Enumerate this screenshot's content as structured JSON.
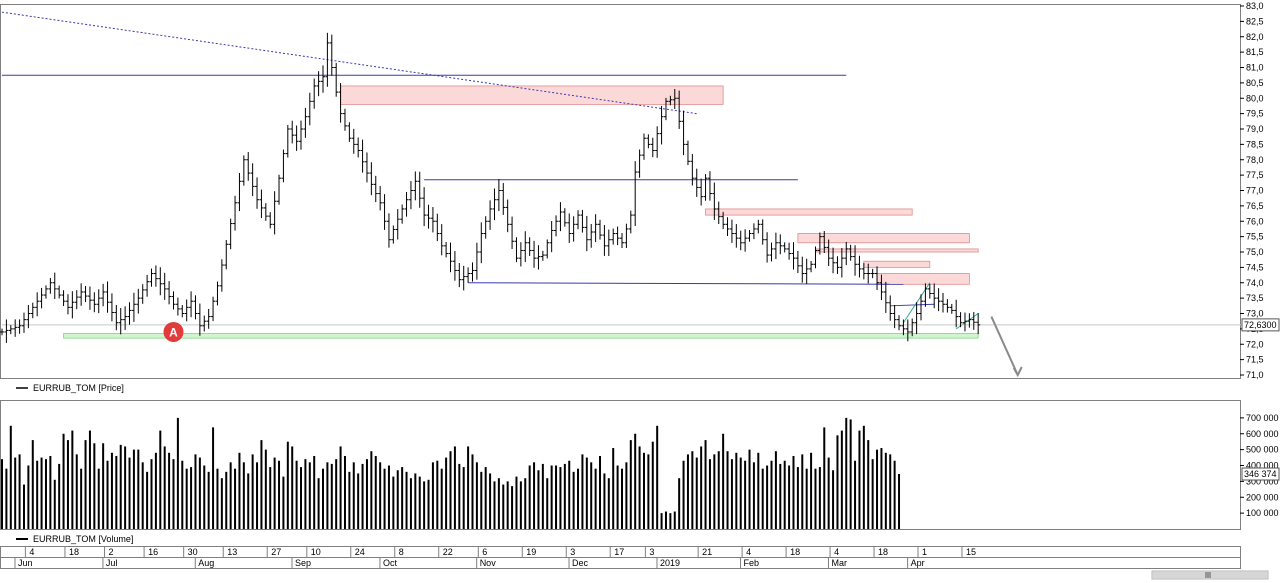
{
  "chart_data": [
    {
      "type": "ohlc",
      "series_name": "EURRUB_TOM [Price]",
      "ylim": [
        71.0,
        83.0
      ],
      "y_ticks": [
        "83,0",
        "82,5",
        "82,0",
        "81,5",
        "81,0",
        "80,5",
        "80,0",
        "79,5",
        "79,0",
        "78,5",
        "78,0",
        "77,5",
        "77,0",
        "76,5",
        "76,0",
        "75,5",
        "75,0",
        "74,5",
        "74,0",
        "73,5",
        "73,0",
        "72,5",
        "72,0",
        "71,5",
        "71,0"
      ],
      "y_tick_values": [
        83.0,
        82.5,
        82.0,
        81.5,
        81.0,
        80.5,
        80.0,
        79.5,
        79.0,
        78.5,
        78.0,
        77.5,
        77.0,
        76.5,
        76.0,
        75.5,
        75.0,
        74.5,
        74.0,
        73.5,
        73.0,
        72.5,
        72.0,
        71.5,
        71.0
      ],
      "last_value": 72.63,
      "last_value_label": "72,6300",
      "close_path": [
        [
          0,
          72.4
        ],
        [
          4,
          72.6
        ],
        [
          8,
          73.4
        ],
        [
          11,
          74.0
        ],
        [
          13,
          73.6
        ],
        [
          15,
          73.2
        ],
        [
          18,
          73.7
        ],
        [
          21,
          73.3
        ],
        [
          23,
          73.7
        ],
        [
          26,
          72.7
        ],
        [
          28,
          72.9
        ],
        [
          31,
          73.5
        ],
        [
          34,
          74.3
        ],
        [
          37,
          73.8
        ],
        [
          39,
          73.3
        ],
        [
          41,
          73.0
        ],
        [
          43,
          73.4
        ],
        [
          45,
          72.6
        ],
        [
          47,
          72.9
        ],
        [
          49,
          73.9
        ],
        [
          53,
          76.6
        ],
        [
          55,
          78.0
        ],
        [
          58,
          76.7
        ],
        [
          61,
          75.9
        ],
        [
          63,
          77.4
        ],
        [
          65,
          79.0
        ],
        [
          67,
          78.6
        ],
        [
          69,
          79.4
        ],
        [
          71,
          80.4
        ],
        [
          73,
          80.7
        ],
        [
          74,
          81.8
        ],
        [
          76,
          80.2
        ],
        [
          77,
          79.5
        ],
        [
          79,
          78.7
        ],
        [
          81,
          78.3
        ],
        [
          84,
          77.2
        ],
        [
          86,
          76.6
        ],
        [
          88,
          75.4
        ],
        [
          91,
          76.4
        ],
        [
          94,
          77.3
        ],
        [
          96,
          76.2
        ],
        [
          98,
          76.0
        ],
        [
          100,
          75.2
        ],
        [
          102,
          74.7
        ],
        [
          104,
          74.1
        ],
        [
          107,
          74.4
        ],
        [
          109,
          75.6
        ],
        [
          111,
          76.4
        ],
        [
          113,
          77.0
        ],
        [
          115,
          75.9
        ],
        [
          117,
          74.8
        ],
        [
          119,
          75.3
        ],
        [
          121,
          74.8
        ],
        [
          123,
          74.9
        ],
        [
          125,
          75.7
        ],
        [
          127,
          76.3
        ],
        [
          129,
          75.6
        ],
        [
          131,
          76.2
        ],
        [
          133,
          75.4
        ],
        [
          135,
          75.9
        ],
        [
          137,
          75.2
        ],
        [
          139,
          75.6
        ],
        [
          141,
          75.3
        ],
        [
          143,
          76.2
        ],
        [
          144,
          77.6
        ],
        [
          146,
          78.7
        ],
        [
          148,
          78.3
        ],
        [
          150,
          79.4
        ],
        [
          151,
          79.9
        ],
        [
          153,
          80.0
        ],
        [
          155,
          78.5
        ],
        [
          157,
          77.4
        ],
        [
          159,
          76.8
        ],
        [
          160,
          77.4
        ],
        [
          162,
          76.4
        ],
        [
          164,
          75.9
        ],
        [
          166,
          75.6
        ],
        [
          168,
          75.3
        ],
        [
          170,
          75.6
        ],
        [
          172,
          75.9
        ],
        [
          174,
          74.9
        ],
        [
          176,
          75.3
        ],
        [
          178,
          75.1
        ],
        [
          180,
          74.8
        ],
        [
          182,
          74.3
        ],
        [
          184,
          74.6
        ],
        [
          186,
          75.5
        ],
        [
          188,
          74.8
        ],
        [
          190,
          74.5
        ],
        [
          192,
          75.1
        ],
        [
          194,
          74.6
        ],
        [
          196,
          74.3
        ],
        [
          198,
          74.3
        ],
        [
          200,
          73.7
        ],
        [
          202,
          73.0
        ],
        [
          204,
          72.6
        ],
        [
          206,
          72.4
        ],
        [
          208,
          73.0
        ],
        [
          210,
          73.8
        ],
        [
          212,
          73.5
        ],
        [
          214,
          73.3
        ],
        [
          216,
          73.1
        ],
        [
          218,
          72.7
        ],
        [
          220,
          72.8
        ],
        [
          222,
          72.63
        ]
      ],
      "zones": [
        {
          "from": 77,
          "to": 164,
          "low": 79.8,
          "high": 80.4,
          "color": "#f9c5c5"
        },
        {
          "from": 160,
          "to": 207,
          "low": 76.2,
          "high": 76.4,
          "color": "#f9c5c5"
        },
        {
          "from": 181,
          "to": 220,
          "low": 75.3,
          "high": 75.6,
          "color": "#f9c5c5"
        },
        {
          "from": 185,
          "to": 222,
          "low": 75.0,
          "high": 75.1,
          "color": "#f9c5c5"
        },
        {
          "from": 196,
          "to": 211,
          "low": 74.5,
          "high": 74.7,
          "color": "#f9c5c5"
        },
        {
          "from": 199,
          "to": 220,
          "low": 73.95,
          "high": 74.3,
          "color": "#f9c5c5"
        },
        {
          "from": 14,
          "to": 222,
          "low": 72.2,
          "high": 72.35,
          "color": "#b8f0b8"
        }
      ],
      "lines": [
        {
          "x1": 0,
          "y1": 80.75,
          "x2": 192,
          "y2": 80.75,
          "color": "#3a3ab0",
          "dash": false
        },
        {
          "x1": 96,
          "y1": 77.35,
          "x2": 181,
          "y2": 77.35,
          "color": "#3a3ab0",
          "dash": false
        },
        {
          "x1": 106,
          "y1": 74.0,
          "x2": 205,
          "y2": 73.95,
          "color": "#3a3ab0",
          "dash": false
        },
        {
          "x1": 0,
          "y1": 82.8,
          "x2": 158,
          "y2": 79.5,
          "color": "#3a3ab0",
          "dash": true
        },
        {
          "x1": 202,
          "y1": 73.25,
          "x2": 212,
          "y2": 73.3,
          "color": "#3a3ab0",
          "dash": false
        },
        {
          "x1": 205,
          "y1": 72.7,
          "x2": 211,
          "y2": 74.0,
          "color": "#2aa89a",
          "dash": false
        },
        {
          "x1": 217,
          "y1": 72.5,
          "x2": 222,
          "y2": 73.0,
          "color": "#2aa89a",
          "dash": false
        },
        {
          "x1": 0,
          "y1": 72.63,
          "x2": 282,
          "y2": 72.63,
          "color": "#c8c8c8",
          "dash": false
        }
      ],
      "arrow": {
        "x1": 225,
        "y1": 72.9,
        "x2": 231,
        "y2": 71.0,
        "color": "#8a8a8a"
      },
      "marker": {
        "x": 39,
        "y": 72.4,
        "label": "A",
        "color": "#e23b3b"
      },
      "x_max": 282
    },
    {
      "type": "bar",
      "series_name": "EURRUB_TOM [Volume]",
      "ylim": [
        0,
        800000
      ],
      "y_ticks": [
        "700 000",
        "600 000",
        "500 000",
        "400 000",
        "300 000",
        "200 000",
        "100 000"
      ],
      "y_tick_values": [
        700000,
        600000,
        500000,
        400000,
        300000,
        200000,
        100000
      ],
      "last_value": 346374,
      "last_value_label": "346 374",
      "volume_levels": [
        440000,
        380000,
        650000,
        450000,
        470000,
        280000,
        400000,
        560000,
        430000,
        450000,
        440000,
        460000,
        310000,
        410000,
        600000,
        560000,
        620000,
        470000,
        380000,
        560000,
        620000,
        540000,
        380000,
        540000,
        430000,
        480000,
        460000,
        530000,
        520000,
        450000,
        500000,
        500000,
        420000,
        360000,
        440000,
        480000,
        620000,
        520000,
        480000,
        440000,
        700000,
        430000,
        380000,
        390000,
        470000,
        450000,
        400000,
        360000,
        640000,
        380000,
        320000,
        360000,
        420000,
        380000,
        480000,
        420000,
        350000,
        470000,
        420000,
        560000,
        500000,
        390000,
        450000,
        430000,
        330000,
        550000,
        520000,
        430000,
        390000,
        440000,
        420000,
        460000,
        320000,
        380000,
        420000,
        410000,
        440000,
        520000,
        460000,
        360000,
        420000,
        350000,
        410000,
        440000,
        490000,
        460000,
        420000,
        380000,
        400000,
        330000,
        370000,
        390000,
        360000,
        320000,
        350000,
        330000,
        300000,
        310000,
        420000,
        430000,
        380000,
        450000,
        490000,
        520000,
        410000,
        390000,
        520000,
        470000,
        420000,
        360000,
        390000,
        350000,
        300000,
        320000,
        280000,
        300000,
        270000,
        330000,
        300000,
        320000,
        400000,
        420000,
        370000,
        410000,
        320000,
        400000,
        400000,
        390000,
        410000,
        430000,
        360000,
        380000,
        470000,
        450000,
        420000,
        380000,
        460000,
        350000,
        320000,
        510000,
        400000,
        380000,
        420000,
        560000,
        600000,
        520000,
        480000,
        470000,
        550000,
        650000,
        100000,
        110000,
        100000,
        110000,
        320000,
        430000,
        470000,
        490000,
        450000,
        520000,
        560000,
        440000,
        470000,
        490000,
        600000,
        490000,
        440000,
        480000,
        450000,
        430000,
        500000,
        420000,
        480000,
        380000,
        400000,
        430000,
        490000,
        410000,
        430000,
        400000,
        460000,
        390000,
        470000,
        380000,
        480000,
        380000,
        390000,
        640000,
        450000,
        370000,
        590000,
        620000,
        700000,
        690000,
        430000,
        620000,
        650000,
        560000,
        440000,
        500000,
        510000,
        480000,
        470000,
        430000,
        346374
      ],
      "x_max": 282
    }
  ],
  "x_axis": {
    "day_ticks": [
      {
        "i": 6,
        "label": "4"
      },
      {
        "i": 15,
        "label": "18"
      },
      {
        "i": 24,
        "label": "2"
      },
      {
        "i": 33,
        "label": "16"
      },
      {
        "i": 42,
        "label": "30"
      },
      {
        "i": 51,
        "label": "13"
      },
      {
        "i": 61,
        "label": "27"
      },
      {
        "i": 70,
        "label": "10"
      },
      {
        "i": 80,
        "label": "24"
      },
      {
        "i": 90,
        "label": "8"
      },
      {
        "i": 100,
        "label": "22"
      },
      {
        "i": 109,
        "label": "6"
      },
      {
        "i": 119,
        "label": "19"
      },
      {
        "i": 129,
        "label": "3"
      },
      {
        "i": 139,
        "label": "17"
      },
      {
        "i": 147,
        "label": "3"
      },
      {
        "i": 159,
        "label": "21"
      },
      {
        "i": 169,
        "label": "4"
      },
      {
        "i": 179,
        "label": "18"
      },
      {
        "i": 189,
        "label": "4"
      },
      {
        "i": 199,
        "label": "18"
      },
      {
        "i": 209,
        "label": "1"
      },
      {
        "i": 219,
        "label": "15"
      }
    ],
    "month_ticks": [
      {
        "i": 5,
        "label": "Jun"
      },
      {
        "i": 25,
        "label": "Jul"
      },
      {
        "i": 46,
        "label": "Aug"
      },
      {
        "i": 68,
        "label": "Sep"
      },
      {
        "i": 88,
        "label": "Oct"
      },
      {
        "i": 110,
        "label": "Nov"
      },
      {
        "i": 131,
        "label": "Dec"
      },
      {
        "i": 151,
        "label": "2019"
      },
      {
        "i": 170,
        "label": "Feb"
      },
      {
        "i": 190,
        "label": "Mar"
      },
      {
        "i": 208,
        "label": "Apr"
      }
    ]
  },
  "colors": {
    "price": "#000000",
    "volume": "#000000",
    "frame": "#888888"
  }
}
